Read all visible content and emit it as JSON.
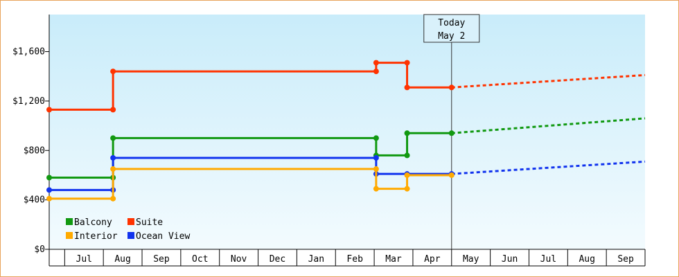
{
  "chart_data": {
    "type": "line",
    "step": true,
    "title": "",
    "xlabel": "",
    "ylabel": "",
    "ylim": [
      0,
      1900
    ],
    "yticks": [
      {
        "value": 0,
        "label": "$0"
      },
      {
        "value": 400,
        "label": "$400"
      },
      {
        "value": 800,
        "label": "$800"
      },
      {
        "value": 1200,
        "label": "$1,200"
      },
      {
        "value": 1600,
        "label": "$1,600"
      }
    ],
    "x_range": [
      0,
      15.4
    ],
    "months": [
      {
        "label": "Jul",
        "pos": 0.9
      },
      {
        "label": "Aug",
        "pos": 1.9
      },
      {
        "label": "Sep",
        "pos": 2.9
      },
      {
        "label": "Oct",
        "pos": 3.9
      },
      {
        "label": "Nov",
        "pos": 4.9
      },
      {
        "label": "Dec",
        "pos": 5.9
      },
      {
        "label": "Jan",
        "pos": 6.9
      },
      {
        "label": "Feb",
        "pos": 7.9
      },
      {
        "label": "Mar",
        "pos": 8.9
      },
      {
        "label": "Apr",
        "pos": 9.9
      },
      {
        "label": "May",
        "pos": 10.9
      },
      {
        "label": "Jun",
        "pos": 11.9
      },
      {
        "label": "Jul",
        "pos": 12.9
      },
      {
        "label": "Aug",
        "pos": 13.9
      },
      {
        "label": "Sep",
        "pos": 14.9
      }
    ],
    "today": {
      "line1": "Today",
      "line2": "May 2",
      "pos": 10.4
    },
    "grid": false,
    "legend_position": "bottom-left",
    "series": [
      {
        "name": "Suite",
        "color": "#ff3300",
        "points": [
          [
            0,
            1130
          ],
          [
            1.65,
            1130
          ],
          [
            1.65,
            1440
          ],
          [
            8.45,
            1440
          ],
          [
            8.45,
            1510
          ],
          [
            9.25,
            1510
          ],
          [
            9.25,
            1310
          ],
          [
            10.4,
            1310
          ]
        ],
        "forecast": [
          [
            10.4,
            1310
          ],
          [
            15.4,
            1410
          ]
        ]
      },
      {
        "name": "Balcony",
        "color": "#119911",
        "points": [
          [
            0,
            580
          ],
          [
            1.65,
            580
          ],
          [
            1.65,
            900
          ],
          [
            8.45,
            900
          ],
          [
            8.45,
            760
          ],
          [
            9.25,
            760
          ],
          [
            9.25,
            940
          ],
          [
            10.4,
            940
          ]
        ],
        "forecast": [
          [
            10.4,
            940
          ],
          [
            15.4,
            1060
          ]
        ]
      },
      {
        "name": "Ocean View",
        "color": "#1133ee",
        "points": [
          [
            0,
            480
          ],
          [
            1.65,
            480
          ],
          [
            1.65,
            740
          ],
          [
            8.45,
            740
          ],
          [
            8.45,
            610
          ],
          [
            9.25,
            610
          ],
          [
            10.4,
            610
          ]
        ],
        "forecast": [
          [
            10.4,
            610
          ],
          [
            15.4,
            710
          ]
        ]
      },
      {
        "name": "Interior",
        "color": "#ffaa00",
        "points": [
          [
            0,
            410
          ],
          [
            1.65,
            410
          ],
          [
            1.65,
            650
          ],
          [
            8.45,
            650
          ],
          [
            8.45,
            490
          ],
          [
            9.25,
            490
          ],
          [
            9.25,
            600
          ],
          [
            10.4,
            600
          ]
        ],
        "forecast": []
      }
    ],
    "legend": [
      {
        "name": "Balcony",
        "color": "#119911"
      },
      {
        "name": "Suite",
        "color": "#ff3300"
      },
      {
        "name": "Interior",
        "color": "#ffaa00"
      },
      {
        "name": "Ocean View",
        "color": "#1133ee"
      }
    ]
  }
}
